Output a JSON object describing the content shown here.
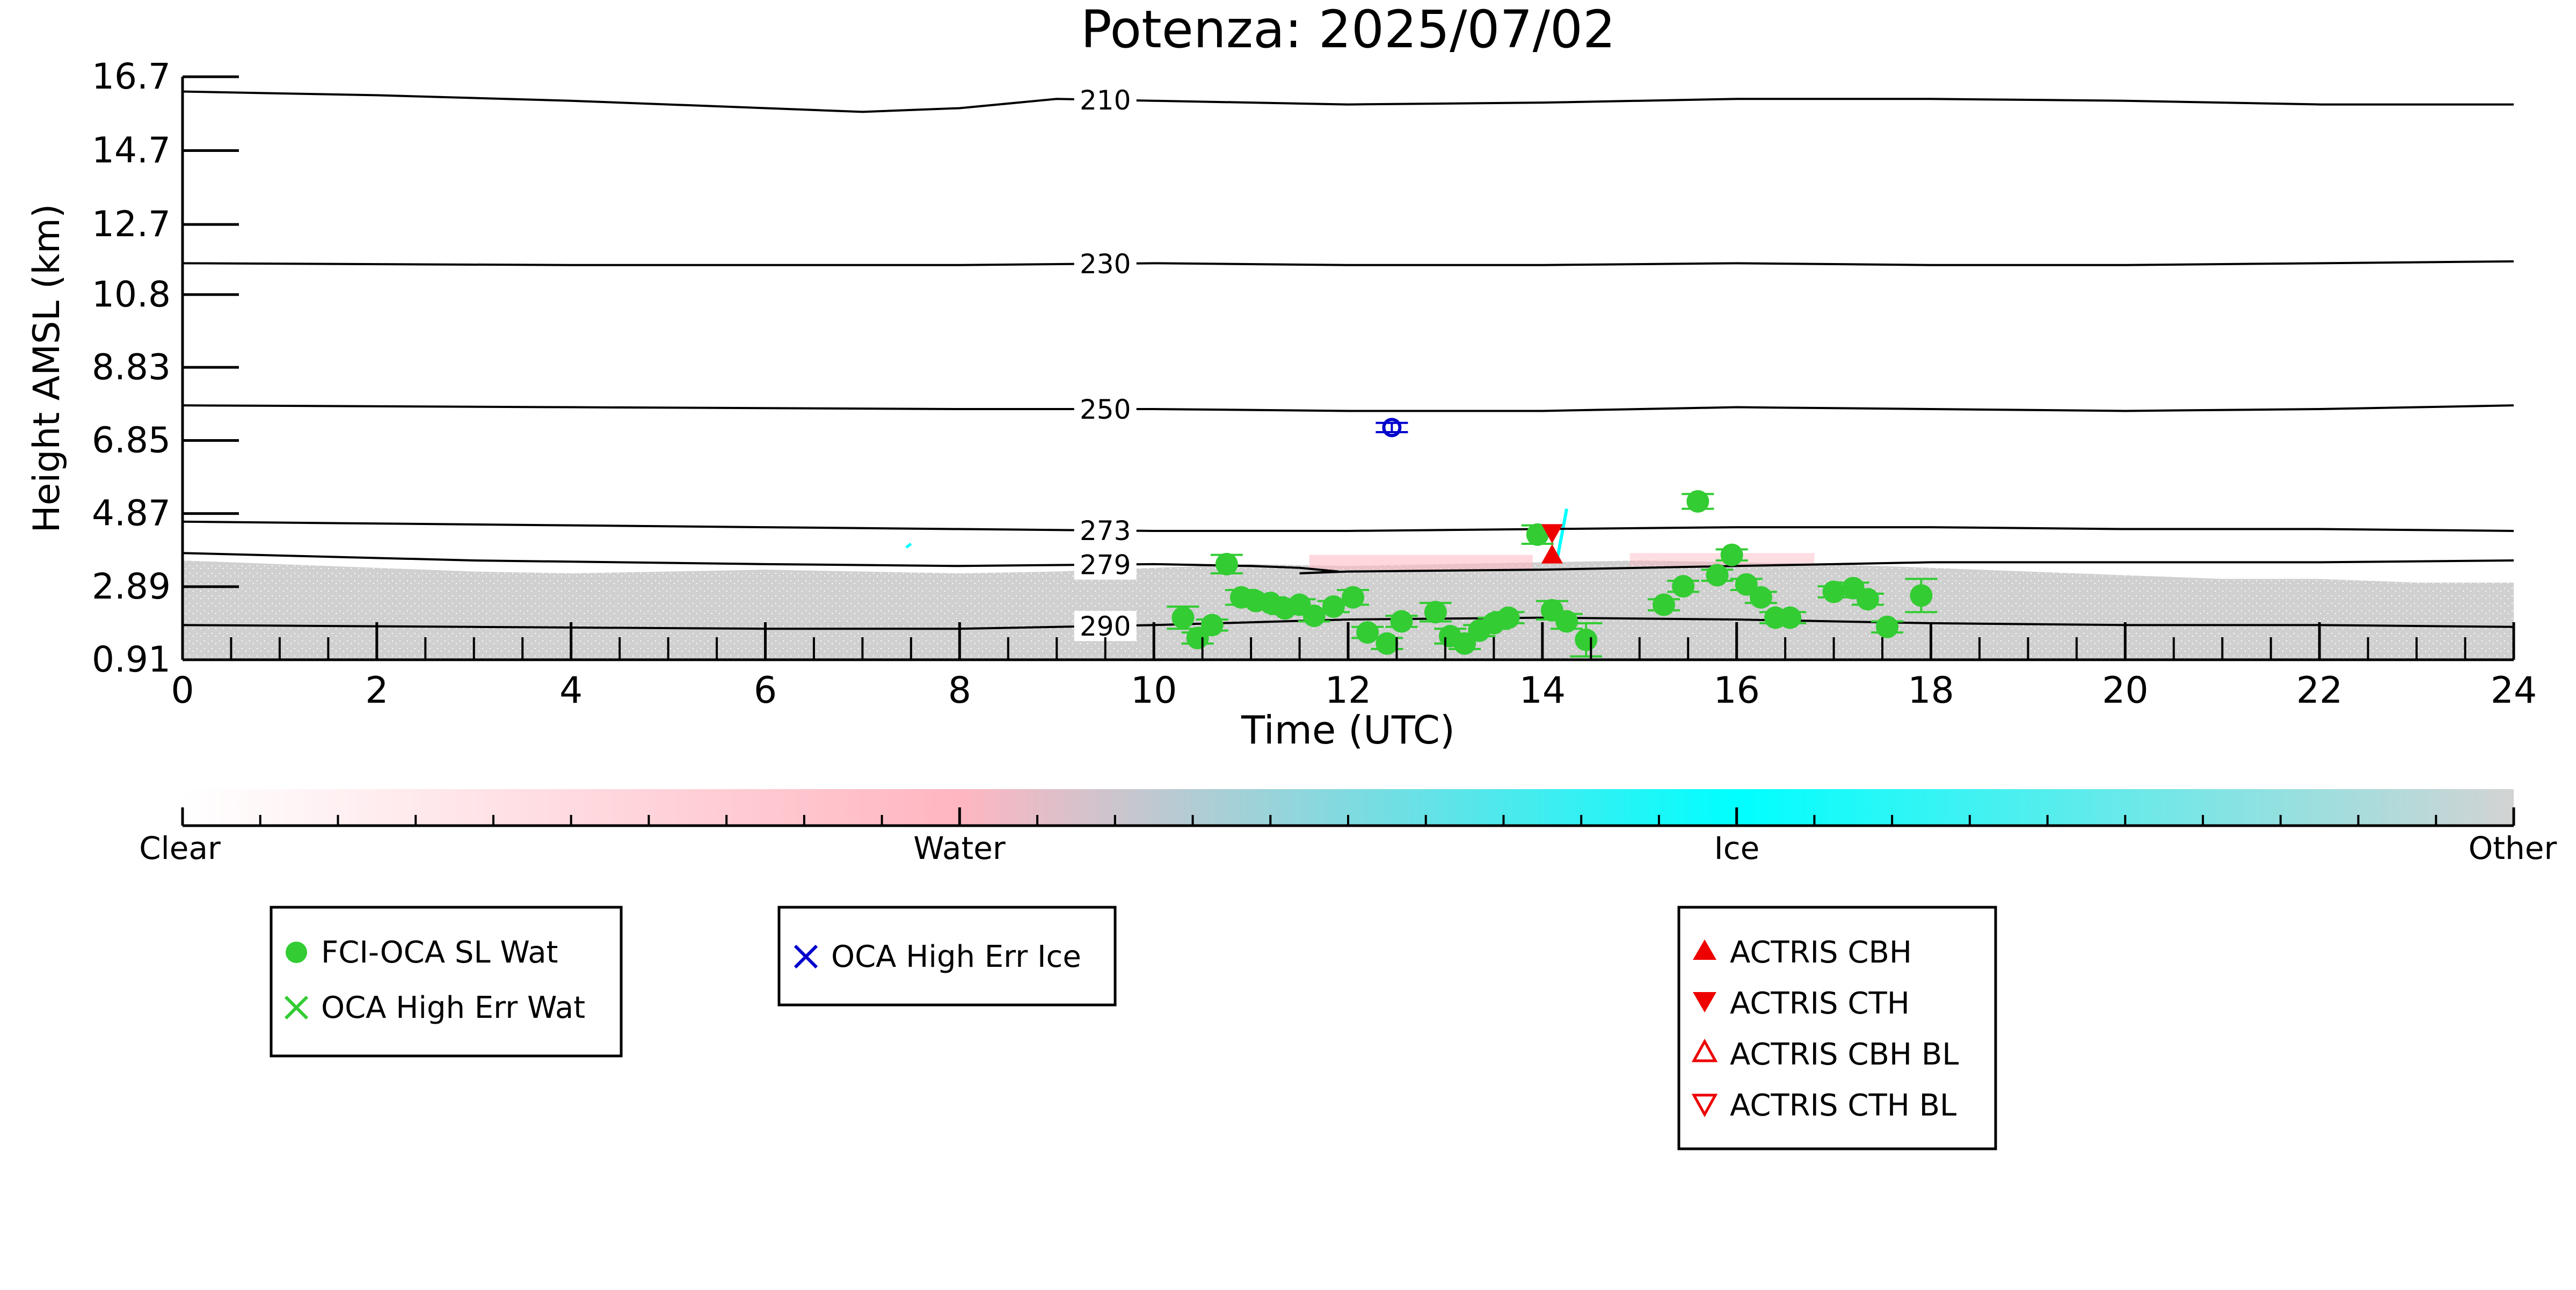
{
  "chart_data": {
    "type": "scatter",
    "title": "Potenza: 2025/07/02",
    "xlabel": "Time (UTC)",
    "ylabel": "Height AMSL (km)",
    "xlim": [
      0,
      24
    ],
    "ylim": [
      0.91,
      16.7
    ],
    "x_ticks": [
      0,
      2,
      4,
      6,
      8,
      10,
      12,
      14,
      16,
      18,
      20,
      22,
      24
    ],
    "y_ticks": [
      0.91,
      2.89,
      4.87,
      6.85,
      8.83,
      10.8,
      12.7,
      14.7,
      16.7
    ],
    "y_tick_labels": [
      "0.91",
      "2.89",
      "4.87",
      "6.85",
      "8.83",
      "10.8",
      "12.7",
      "14.7",
      "16.7"
    ],
    "grid": false,
    "background_field": {
      "description_color": "#d3d3d3",
      "water_color": "#ffb6c1",
      "ice_color": "#00ffff",
      "top_profile": [
        [
          0,
          3.6
        ],
        [
          1,
          3.5
        ],
        [
          2,
          3.4
        ],
        [
          3,
          3.3
        ],
        [
          4,
          3.25
        ],
        [
          5,
          3.3
        ],
        [
          6,
          3.35
        ],
        [
          7,
          3.3
        ],
        [
          8,
          3.25
        ],
        [
          9,
          3.3
        ],
        [
          10,
          3.4
        ],
        [
          11,
          3.5
        ],
        [
          12,
          3.45
        ],
        [
          13,
          3.5
        ],
        [
          14,
          3.55
        ],
        [
          15,
          3.6
        ],
        [
          16,
          3.55
        ],
        [
          17,
          3.5
        ],
        [
          18,
          3.4
        ],
        [
          19,
          3.3
        ],
        [
          20,
          3.2
        ],
        [
          21,
          3.1
        ],
        [
          22,
          3.1
        ],
        [
          23,
          3.0
        ],
        [
          24,
          3.0
        ]
      ]
    },
    "isotherms": [
      {
        "label": "210",
        "label_x": 9.5,
        "points": [
          [
            0,
            16.3
          ],
          [
            2,
            16.2
          ],
          [
            4,
            16.05
          ],
          [
            5.5,
            15.9
          ],
          [
            7,
            15.75
          ],
          [
            8,
            15.85
          ],
          [
            9,
            16.1
          ],
          [
            10,
            16.05
          ],
          [
            12,
            15.95
          ],
          [
            14,
            16.0
          ],
          [
            16,
            16.1
          ],
          [
            18,
            16.1
          ],
          [
            20,
            16.05
          ],
          [
            22,
            15.95
          ],
          [
            24,
            15.95
          ]
        ]
      },
      {
        "label": "230",
        "label_x": 9.5,
        "points": [
          [
            0,
            11.65
          ],
          [
            4,
            11.6
          ],
          [
            8,
            11.6
          ],
          [
            10,
            11.65
          ],
          [
            12,
            11.6
          ],
          [
            14,
            11.6
          ],
          [
            16,
            11.65
          ],
          [
            18,
            11.6
          ],
          [
            20,
            11.6
          ],
          [
            22,
            11.65
          ],
          [
            24,
            11.7
          ]
        ]
      },
      {
        "label": "250",
        "label_x": 9.5,
        "points": [
          [
            0,
            7.8
          ],
          [
            4,
            7.75
          ],
          [
            8,
            7.7
          ],
          [
            10,
            7.7
          ],
          [
            12,
            7.65
          ],
          [
            14,
            7.65
          ],
          [
            16,
            7.75
          ],
          [
            18,
            7.7
          ],
          [
            20,
            7.65
          ],
          [
            22,
            7.7
          ],
          [
            24,
            7.8
          ]
        ]
      },
      {
        "label": "273",
        "label_x": 9.5,
        "points": [
          [
            0,
            4.65
          ],
          [
            4,
            4.55
          ],
          [
            8,
            4.45
          ],
          [
            10,
            4.4
          ],
          [
            12,
            4.4
          ],
          [
            14,
            4.45
          ],
          [
            16,
            4.5
          ],
          [
            18,
            4.5
          ],
          [
            20,
            4.45
          ],
          [
            22,
            4.45
          ],
          [
            24,
            4.4
          ]
        ]
      },
      {
        "label": "279",
        "label_x": 9.5,
        "points": [
          [
            0,
            3.8
          ],
          [
            3,
            3.6
          ],
          [
            6,
            3.5
          ],
          [
            8,
            3.45
          ],
          [
            10,
            3.5
          ],
          [
            11,
            3.45
          ],
          [
            11.5,
            3.4
          ],
          [
            11.9,
            3.3
          ],
          [
            11.5,
            3.25
          ],
          [
            12,
            3.3
          ],
          [
            14,
            3.35
          ],
          [
            16,
            3.45
          ],
          [
            18,
            3.55
          ],
          [
            20,
            3.55
          ],
          [
            22,
            3.55
          ],
          [
            24,
            3.6
          ]
        ]
      },
      {
        "label": "290",
        "label_x": 9.5,
        "points": [
          [
            0,
            1.85
          ],
          [
            3,
            1.8
          ],
          [
            6,
            1.75
          ],
          [
            8,
            1.75
          ],
          [
            10,
            1.85
          ],
          [
            12,
            2.0
          ],
          [
            14,
            2.05
          ],
          [
            16,
            2.0
          ],
          [
            18,
            1.9
          ],
          [
            20,
            1.85
          ],
          [
            22,
            1.85
          ],
          [
            24,
            1.8
          ]
        ]
      }
    ],
    "series": [
      {
        "name": "FCI-OCA SL Wat",
        "marker": "filled-circle",
        "color": "#33cc33",
        "points": [
          [
            10.3,
            2.05,
            0.6
          ],
          [
            10.45,
            1.5,
            0.3
          ],
          [
            10.6,
            1.85,
            0.3
          ],
          [
            10.75,
            3.5,
            0.5
          ],
          [
            10.9,
            2.6,
            0.4
          ],
          [
            11.05,
            2.5,
            0.3
          ],
          [
            11.2,
            2.45,
            0.3
          ],
          [
            11.35,
            2.3,
            0.3
          ],
          [
            11.5,
            2.4,
            0.3
          ],
          [
            11.65,
            2.1,
            0.3
          ],
          [
            11.85,
            2.35,
            0.3
          ],
          [
            12.05,
            2.6,
            0.4
          ],
          [
            12.2,
            1.65,
            0.3
          ],
          [
            12.4,
            1.35,
            0.3
          ],
          [
            12.55,
            1.95,
            0.3
          ],
          [
            12.9,
            2.2,
            0.5
          ],
          [
            13.05,
            1.55,
            0.4
          ],
          [
            13.2,
            1.35,
            0.3
          ],
          [
            13.35,
            1.7,
            0.3
          ],
          [
            13.5,
            1.9,
            0.3
          ],
          [
            13.65,
            2.05,
            0.3
          ],
          [
            13.95,
            4.3,
            0.5
          ],
          [
            14.1,
            2.25,
            0.5
          ],
          [
            14.25,
            1.95,
            0.4
          ],
          [
            14.45,
            1.45,
            0.9
          ],
          [
            15.25,
            2.4,
            0.3
          ],
          [
            15.45,
            2.9,
            0.3
          ],
          [
            15.6,
            5.2,
            0.4
          ],
          [
            15.8,
            3.2,
            0.3
          ],
          [
            15.95,
            3.75,
            0.3
          ],
          [
            16.1,
            2.95,
            0.3
          ],
          [
            16.25,
            2.6,
            0.3
          ],
          [
            16.4,
            2.05,
            0.3
          ],
          [
            16.55,
            2.05,
            0.3
          ],
          [
            17.0,
            2.75,
            0.3
          ],
          [
            17.2,
            2.85,
            0.3
          ],
          [
            17.35,
            2.55,
            0.3
          ],
          [
            17.55,
            1.8,
            0.3
          ],
          [
            17.9,
            2.65,
            0.9
          ]
        ]
      },
      {
        "name": "OCA High Err Ice",
        "marker": "open-circle",
        "color": "#0000cc",
        "points": [
          [
            12.45,
            7.2,
            0.25
          ]
        ]
      },
      {
        "name": "ACTRIS CBH",
        "marker": "triangle-up",
        "color": "#ee0000",
        "points": [
          [
            14.1,
            3.75
          ]
        ]
      },
      {
        "name": "ACTRIS CTH",
        "marker": "triangle-down",
        "color": "#ee0000",
        "points": [
          [
            14.1,
            4.35
          ]
        ]
      }
    ],
    "colorbar": {
      "labels": [
        "Clear",
        "Water",
        "Ice",
        "Other"
      ],
      "colors": [
        "#ffffff",
        "#ffb6c1",
        "#00ffff",
        "#d3d3d3"
      ]
    },
    "legends": [
      {
        "entries": [
          {
            "label": "FCI-OCA SL Wat",
            "marker": "filled-circle",
            "color": "#33cc33"
          },
          {
            "label": "OCA High Err Wat",
            "marker": "x",
            "color": "#33cc33"
          }
        ]
      },
      {
        "entries": [
          {
            "label": "OCA High Err Ice",
            "marker": "x",
            "color": "#0000cc"
          }
        ]
      },
      {
        "entries": [
          {
            "label": "ACTRIS CBH",
            "marker": "triangle-up",
            "color": "#ee0000"
          },
          {
            "label": "ACTRIS CTH",
            "marker": "triangle-down",
            "color": "#ee0000"
          },
          {
            "label": "ACTRIS CBH BL",
            "marker": "open-triangle-up",
            "color": "#ee0000"
          },
          {
            "label": "ACTRIS CTH BL",
            "marker": "open-triangle-down",
            "color": "#ee0000"
          }
        ]
      }
    ]
  }
}
